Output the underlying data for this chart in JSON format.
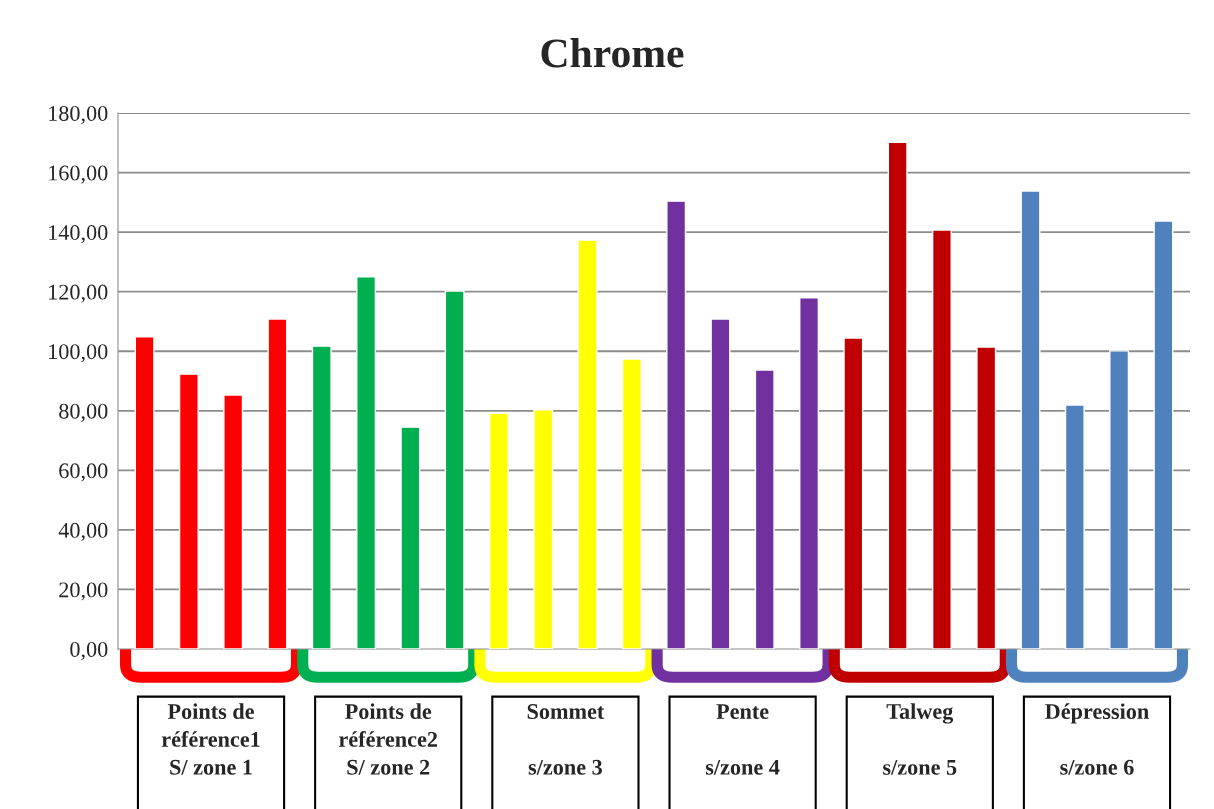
{
  "chart_data": {
    "type": "bar",
    "title": "Chrome",
    "categories": [
      null,
      null,
      null,
      null,
      null,
      null,
      null,
      null,
      null,
      null,
      null,
      null,
      null,
      null,
      null,
      null,
      null,
      null,
      null,
      null,
      null,
      null,
      null,
      null
    ],
    "values": [
      104.8,
      92.3,
      85.3,
      110.8,
      101.7,
      125.0,
      74.5,
      120.2,
      79.2,
      80.3,
      137.3,
      97.4,
      150.4,
      110.8,
      93.7,
      117.9,
      104.4,
      170.2,
      140.7,
      101.4,
      153.8,
      81.9,
      100.1,
      143.7
    ],
    "colors": [
      "#ff0000",
      "#ff0000",
      "#ff0000",
      "#ff0000",
      "#00b050",
      "#00b050",
      "#00b050",
      "#00b050",
      "#ffff00",
      "#ffff00",
      "#ffff00",
      "#ffff00",
      "#7030a0",
      "#7030a0",
      "#7030a0",
      "#7030a0",
      "#c00000",
      "#c00000",
      "#c00000",
      "#c00000",
      "#4f81bd",
      "#4f81bd",
      "#4f81bd",
      "#4f81bd"
    ],
    "ylim": [
      0,
      180
    ],
    "yticks": [
      {
        "value": 0,
        "label": "0,00"
      },
      {
        "value": 20,
        "label": "20,00"
      },
      {
        "value": 40,
        "label": "40,00"
      },
      {
        "value": 60,
        "label": "60,00"
      },
      {
        "value": 80,
        "label": "80,00"
      },
      {
        "value": 100,
        "label": "100,00"
      },
      {
        "value": 120,
        "label": "120,00"
      },
      {
        "value": 140,
        "label": "140,00"
      },
      {
        "value": 160,
        "label": "160,00"
      },
      {
        "value": 180,
        "label": "180,00"
      }
    ],
    "grid": "y",
    "annotations": [
      "Points de\nréférence1\nS/ zone 1",
      "Points de\nréférence2\nS/ zone 2",
      "Sommet\n\ns/zone 3",
      "Pente\n\ns/zone 4",
      "Talweg\n\ns/zone 5",
      "Dépression\n\ns/zone 6"
    ]
  }
}
